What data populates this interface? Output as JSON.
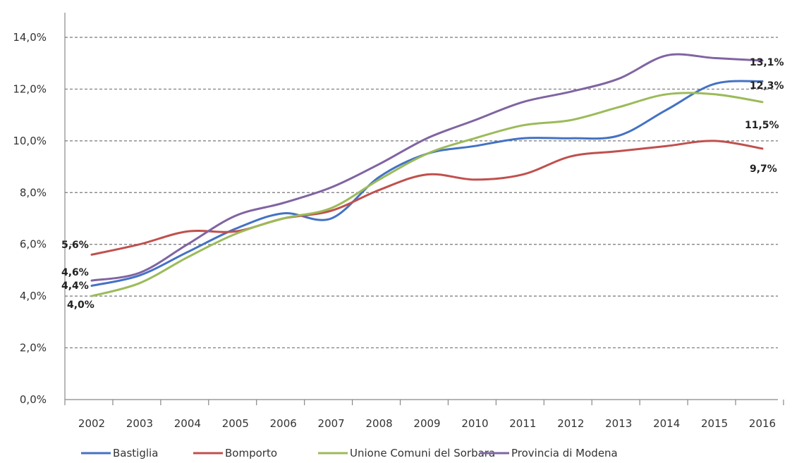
{
  "chart_data": {
    "type": "line",
    "title": "",
    "xlabel": "",
    "ylabel": "",
    "categories": [
      "2002",
      "2003",
      "2004",
      "2005",
      "2006",
      "2007",
      "2008",
      "2009",
      "2010",
      "2011",
      "2012",
      "2013",
      "2014",
      "2015",
      "2016"
    ],
    "ylim": [
      0,
      14
    ],
    "yticks": [
      "0,0%",
      "2,0%",
      "4,0%",
      "6,0%",
      "8,0%",
      "10,0%",
      "12,0%",
      "14,0%"
    ],
    "grid": true,
    "legend_position": "bottom",
    "series": [
      {
        "name": "Bastiglia",
        "color": "#4472C4",
        "values": [
          4.4,
          4.8,
          5.7,
          6.6,
          7.2,
          7.0,
          8.6,
          9.5,
          9.8,
          10.1,
          10.1,
          10.2,
          11.2,
          12.2,
          12.3
        ],
        "labels": [
          {
            "index": 0,
            "text": "4,4%"
          },
          {
            "index": 14,
            "text": "12,3%"
          }
        ]
      },
      {
        "name": "Bomporto",
        "color": "#C0504D",
        "values": [
          5.6,
          6.0,
          6.5,
          6.5,
          7.0,
          7.3,
          8.1,
          8.7,
          8.5,
          8.7,
          9.4,
          9.6,
          9.8,
          10.0,
          9.7
        ],
        "labels": [
          {
            "index": 0,
            "text": "5,6%"
          },
          {
            "index": 14,
            "text": "9,7%"
          }
        ]
      },
      {
        "name": "Unione Comuni del Sorbara",
        "color": "#9BBB59",
        "values": [
          4.0,
          4.5,
          5.5,
          6.4,
          7.0,
          7.4,
          8.5,
          9.5,
          10.1,
          10.6,
          10.8,
          11.3,
          11.8,
          11.8,
          11.5
        ],
        "labels": [
          {
            "index": 0,
            "text": "4,0%"
          },
          {
            "index": 14,
            "text": "11,5%"
          }
        ]
      },
      {
        "name": "Provincia di Modena",
        "color": "#8064A2",
        "values": [
          4.6,
          4.9,
          6.0,
          7.1,
          7.6,
          8.2,
          9.1,
          10.1,
          10.8,
          11.5,
          11.9,
          12.4,
          13.3,
          13.2,
          13.1
        ],
        "labels": [
          {
            "index": 0,
            "text": "4,6%"
          },
          {
            "index": 14,
            "text": "13,1%"
          }
        ]
      }
    ]
  }
}
